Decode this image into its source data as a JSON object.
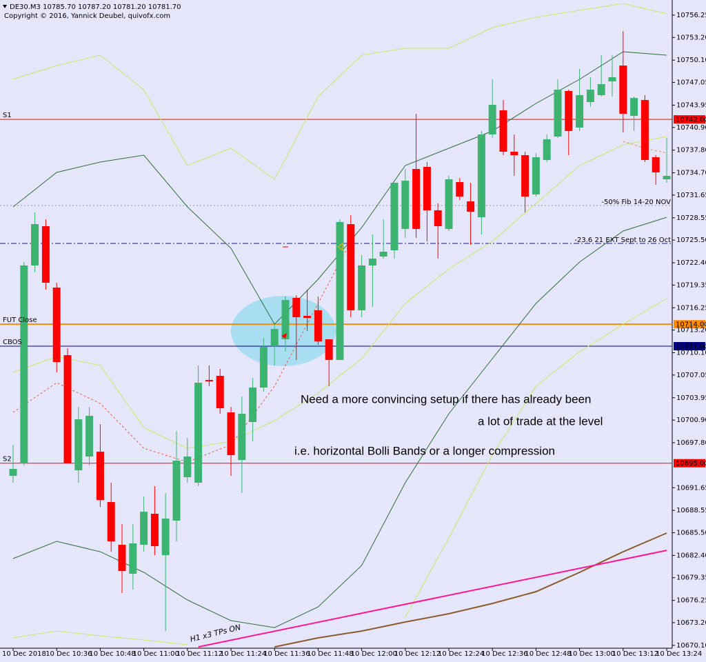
{
  "chart_data": {
    "type": "candlestick",
    "title": "DE30.M3  10785.70 10787.20 10781.20 10781.70",
    "subtitle": "Copyright © 2016, Yannick Deubel, quivofx.com",
    "background": "#e6e6fa",
    "up_color": "#3cb371",
    "down_color": "#ff0000",
    "categories": [
      "10 Dec 2018",
      null,
      null,
      null,
      "10 Dec 10:36",
      null,
      null,
      null,
      "10 Dec 10:48",
      null,
      null,
      null,
      "10 Dec 11:00",
      null,
      null,
      null,
      "10 Dec 11:12",
      null,
      null,
      null,
      "10 Dec 11:24",
      null,
      null,
      null,
      "10 Dec 11:36",
      null,
      null,
      null,
      "10 Dec 11:48",
      null,
      null,
      null,
      "10 Dec 12:00",
      null,
      null,
      null,
      "10 Dec 12:12",
      null,
      null,
      null,
      "10 Dec 12:24",
      null,
      null,
      null,
      "10 Dec 12:36",
      null,
      null,
      null,
      "10 Dec 12:48",
      null,
      null,
      null,
      "10 Dec 13:00",
      null,
      null,
      null,
      "10 Dec 13:12",
      null,
      null,
      null,
      "10 Dec 13:24"
    ],
    "ohlc": [
      [
        10693.27,
        10697.52,
        10692.33,
        10694.22
      ],
      [
        10694.97,
        10722.5,
        10694.69,
        10722.03
      ],
      [
        10722.03,
        10729.28,
        10721.08,
        10727.68
      ],
      [
        10727.4,
        10728.34,
        10718.73,
        10719.67
      ],
      [
        10719.01,
        10719.67,
        10707.41,
        10708.83
      ],
      [
        10709.77,
        10710.71,
        10694.97,
        10694.97
      ],
      [
        10694.03,
        10702.7,
        10692.33,
        10701.0
      ],
      [
        10695.91,
        10702.7,
        10694.69,
        10701.48
      ],
      [
        10696.57,
        10700.34,
        10689.03,
        10689.97
      ],
      [
        10689.69,
        10692.33,
        10682.9,
        10684.32
      ],
      [
        10683.85,
        10686.67,
        10677.25,
        10680.26
      ],
      [
        10679.89,
        10686.67,
        10677.72,
        10684.04
      ],
      [
        10683.85,
        10690.45,
        10682.9,
        10688.37
      ],
      [
        10688.09,
        10691.86,
        10682.43,
        10683.66
      ],
      [
        10682.43,
        10690.92,
        10672.06,
        10687.43
      ],
      [
        10687.15,
        10699.4,
        10684.32,
        10695.35
      ],
      [
        10693.09,
        10698.46,
        10692.33,
        10695.91
      ],
      [
        10692.33,
        10708.36,
        10691.86,
        10706.0
      ],
      [
        10706.38,
        10708.36,
        10705.53,
        10706.19
      ],
      [
        10706.94,
        10707.89,
        10701.76,
        10702.51
      ],
      [
        10701.95,
        10702.7,
        10693.27,
        10696.1
      ],
      [
        10695.44,
        10704.11,
        10690.92,
        10701.76
      ],
      [
        10700.63,
        10706.66,
        10697.99,
        10705.34
      ],
      [
        10705.34,
        10712.13,
        10704.77,
        10710.9
      ],
      [
        10711.0,
        10714.01,
        10708.36,
        10713.35
      ],
      [
        10711.94,
        10717.78,
        10710.24,
        10717.31
      ],
      [
        10717.6,
        10717.97,
        10709.11,
        10714.96
      ],
      [
        10715.14,
        10718.73,
        10713.07,
        10714.86
      ],
      [
        10715.9,
        10717.78,
        10711.18,
        10711.66
      ],
      [
        10711.94,
        10711.94,
        10705.53,
        10709.11
      ],
      [
        10709.11,
        10728.34,
        10709.11,
        10727.97
      ],
      [
        10727.68,
        10728.91,
        10714.96,
        10715.9
      ],
      [
        10715.9,
        10723.44,
        10714.96,
        10722.03
      ],
      [
        10722.03,
        10726.27,
        10716.37,
        10722.97
      ],
      [
        10723.25,
        10728.34,
        10722.97,
        10723.91
      ],
      [
        10724.1,
        10733.34,
        10722.97,
        10733.34
      ],
      [
        10727.02,
        10735.22,
        10725.8,
        10733.62
      ],
      [
        10735.22,
        10742.77,
        10725.8,
        10727.02
      ],
      [
        10735.51,
        10736.17,
        10725.33,
        10729.57
      ],
      [
        10729.57,
        10730.51,
        10722.97,
        10727.4
      ],
      [
        10727.02,
        10734.28,
        10726.74,
        10733.81
      ],
      [
        10733.43,
        10734.0,
        10730.98,
        10731.45
      ],
      [
        10730.79,
        10733.34,
        10724.85,
        10729.38
      ],
      [
        10728.62,
        10740.41,
        10726.27,
        10739.94
      ],
      [
        10739.94,
        10747.48,
        10739.47,
        10743.99
      ],
      [
        10743.24,
        10744.65,
        10737.11,
        10737.58
      ],
      [
        10737.58,
        10739.94,
        10734.28,
        10737.11
      ],
      [
        10737.11,
        10737.58,
        10729.28,
        10731.45
      ],
      [
        10731.74,
        10737.39,
        10731.45,
        10736.83
      ],
      [
        10736.45,
        10739.94,
        10736.17,
        10739.28
      ],
      [
        10739.65,
        10747.48,
        10739.47,
        10746.06
      ],
      [
        10745.88,
        10746.06,
        10737.11,
        10740.41
      ],
      [
        10740.88,
        10748.89,
        10740.41,
        10745.31
      ],
      [
        10744.37,
        10747.76,
        10743.71,
        10746.06
      ],
      [
        10745.31,
        10750.78,
        10745.12,
        10746.82
      ],
      [
        10747.2,
        10750.78,
        10745.12,
        10747.76
      ],
      [
        10749.36,
        10754.08,
        10740.22,
        10742.77
      ],
      [
        10742.48,
        10745.12,
        10740.41,
        10744.93
      ],
      [
        10744.65,
        10745.31,
        10736.17,
        10736.45
      ],
      [
        10736.83,
        10737.11,
        10733.06,
        10734.75
      ],
      [
        10733.81,
        10739.47,
        10733.34,
        10734.28
      ]
    ],
    "overlays": [
      {
        "color": "#c5ea6a",
        "width": 1,
        "dashed": false,
        "x": [
          0,
          4,
          8,
          12,
          16,
          20,
          24,
          28,
          32,
          36,
          40,
          44,
          48,
          52,
          56,
          60
        ],
        "values": [
          10747.48,
          10749.36,
          10750.78,
          10746.06,
          10735.7,
          10738.05,
          10733.81,
          10745.12,
          10750.78,
          10751.72,
          10751.72,
          10754.55,
          10755.96,
          10756.91,
          10757.85,
          10756.43
        ]
      },
      {
        "color": "#2e6b3a",
        "width": 1,
        "dashed": false,
        "x": [
          0,
          4,
          8,
          12,
          16,
          20,
          24,
          28,
          32,
          36,
          40,
          44,
          48,
          52,
          56,
          60
        ],
        "values": [
          10730.04,
          10734.75,
          10736.17,
          10737.11,
          10730.04,
          10724.38,
          10714.01,
          10720.14,
          10727.21,
          10735.7,
          10738.05,
          10740.41,
          10744.18,
          10747.48,
          10751.25,
          10750.78
        ]
      },
      {
        "color": "#c5ea6a",
        "width": 1,
        "dashed": false,
        "x": [
          0,
          4,
          8,
          12,
          16,
          20,
          24,
          28,
          32,
          36,
          40,
          44,
          48,
          52,
          56,
          60
        ],
        "values": [
          10707.41,
          10709.58,
          10708.36,
          10699.87,
          10697.04,
          10697.99,
          10700.82,
          10704.59,
          10709.3,
          10716.84,
          10721.55,
          10725.33,
          10730.51,
          10735.7,
          10738.52,
          10739.65
        ]
      },
      {
        "color": "#e0604a",
        "width": 1,
        "dashed": true,
        "x": [
          0,
          4,
          8,
          12,
          16,
          20,
          24,
          28,
          31
        ],
        "values": [
          10701.95,
          10706.0,
          10703.17,
          10697.04,
          10695.16,
          10697.52,
          10705.53,
          10716.84,
          10725.33
        ]
      },
      {
        "color": "#e0904a",
        "width": 1,
        "dashed": true,
        "x": [
          56,
          58,
          60
        ],
        "values": [
          10738.99,
          10738.05,
          10737.39
        ]
      },
      {
        "color": "#2e6b3a",
        "width": 1,
        "dashed": false,
        "x": [
          0,
          4,
          8,
          12,
          16,
          20,
          24,
          28,
          32,
          36,
          40,
          44,
          48,
          52,
          56,
          60
        ],
        "values": [
          10681.96,
          10684.32,
          10682.9,
          10680.08,
          10676.31,
          10673.48,
          10672.53,
          10675.36,
          10681.02,
          10692.33,
          10701.76,
          10709.3,
          10716.84,
          10722.5,
          10726.74,
          10728.62
        ]
      },
      {
        "color": "#c5ea6a",
        "width": 1,
        "dashed": false,
        "x": [
          0,
          4,
          8,
          12,
          16,
          20,
          36,
          40,
          44,
          48,
          52,
          56,
          60
        ],
        "values": [
          10671.12,
          10672.06,
          10671.4,
          10670.84,
          10670.18,
          null,
          10673.95,
          10684.79,
          10696.1,
          10705.53,
          10710.24,
          10714.01,
          10717.5
        ]
      },
      {
        "color": "#8b5a2b",
        "width": 2,
        "dashed": false,
        "x": [
          24,
          28,
          32,
          36,
          40,
          44,
          48,
          52,
          56,
          60
        ],
        "values": [
          10669.89,
          10671.12,
          10672.06,
          10673.29,
          10674.42,
          10675.83,
          10677.44,
          10680.08,
          10682.9,
          10685.45
        ]
      },
      {
        "color": "#ff1493",
        "width": 2,
        "dashed": false,
        "x": [
          17,
          60
        ],
        "values": [
          10669.89,
          10683.09
        ]
      }
    ],
    "levels": [
      {
        "name": "S1",
        "value": 10742.0,
        "label": "10742.00",
        "color": "#ff0000",
        "style": "solid"
      },
      {
        "name": "-50%  Fib 14-20  NOV",
        "value": 10730.23,
        "color": "#9a9a9a",
        "style": "dotted"
      },
      {
        "name": "-23.6  21 EXT Sept to 26 Oct",
        "value": 10725.05,
        "color": "#1a1a8c",
        "style": "dashdot"
      },
      {
        "name": "FUT Close",
        "value": 10714.0,
        "label": "10714.00",
        "color": "#ff8c00",
        "style": "thick"
      },
      {
        "name": "CBOS",
        "value": 10711.0,
        "label": "10711.00",
        "color": "#000080",
        "style": "solid"
      },
      {
        "name": "S2",
        "value": 10695.0,
        "label": "10695.00",
        "color": "#ff0000",
        "style": "solid"
      }
    ],
    "annotations": [
      "Need a more convincing setup if there has already been",
      "a lot of trade at the level",
      "i.e. horizontal Bolli Bands or a longer compression",
      "H1 x3 TPs ON"
    ],
    "ylim": [
      10669.71,
      10758.32
    ],
    "yticks": [
      10756.25,
      {
        "value": 10753.2,
        "label": "10753.20"
      },
      {
        "value": 10750.1,
        "label": "10750.10"
      },
      10747.05,
      10743.95,
      {
        "value": 10740.9,
        "label": "10740.90"
      },
      {
        "value": 10737.8,
        "label": "10737.80"
      },
      {
        "value": 10734.7,
        "label": "10734.70"
      },
      10731.65,
      10728.55,
      {
        "value": 10725.5,
        "label": "10725.50"
      },
      {
        "value": 10722.4,
        "label": "10722.40"
      },
      10719.35,
      10716.25,
      {
        "value": 10713.2,
        "label": "10713.20"
      },
      {
        "value": 10710.1,
        "label": "10710.10"
      },
      10707.05,
      10703.95,
      {
        "value": 10700.9,
        "label": "10700.90"
      },
      {
        "value": 10697.8,
        "label": "10697.80"
      },
      10691.65,
      10688.55,
      {
        "value": 10685.5,
        "label": "10685.50"
      },
      {
        "value": 10682.4,
        "label": "10682.40"
      },
      10679.35,
      10676.25,
      {
        "value": 10673.2,
        "label": "10673.20"
      },
      {
        "value": 10670.1,
        "label": "10670.10"
      }
    ]
  }
}
